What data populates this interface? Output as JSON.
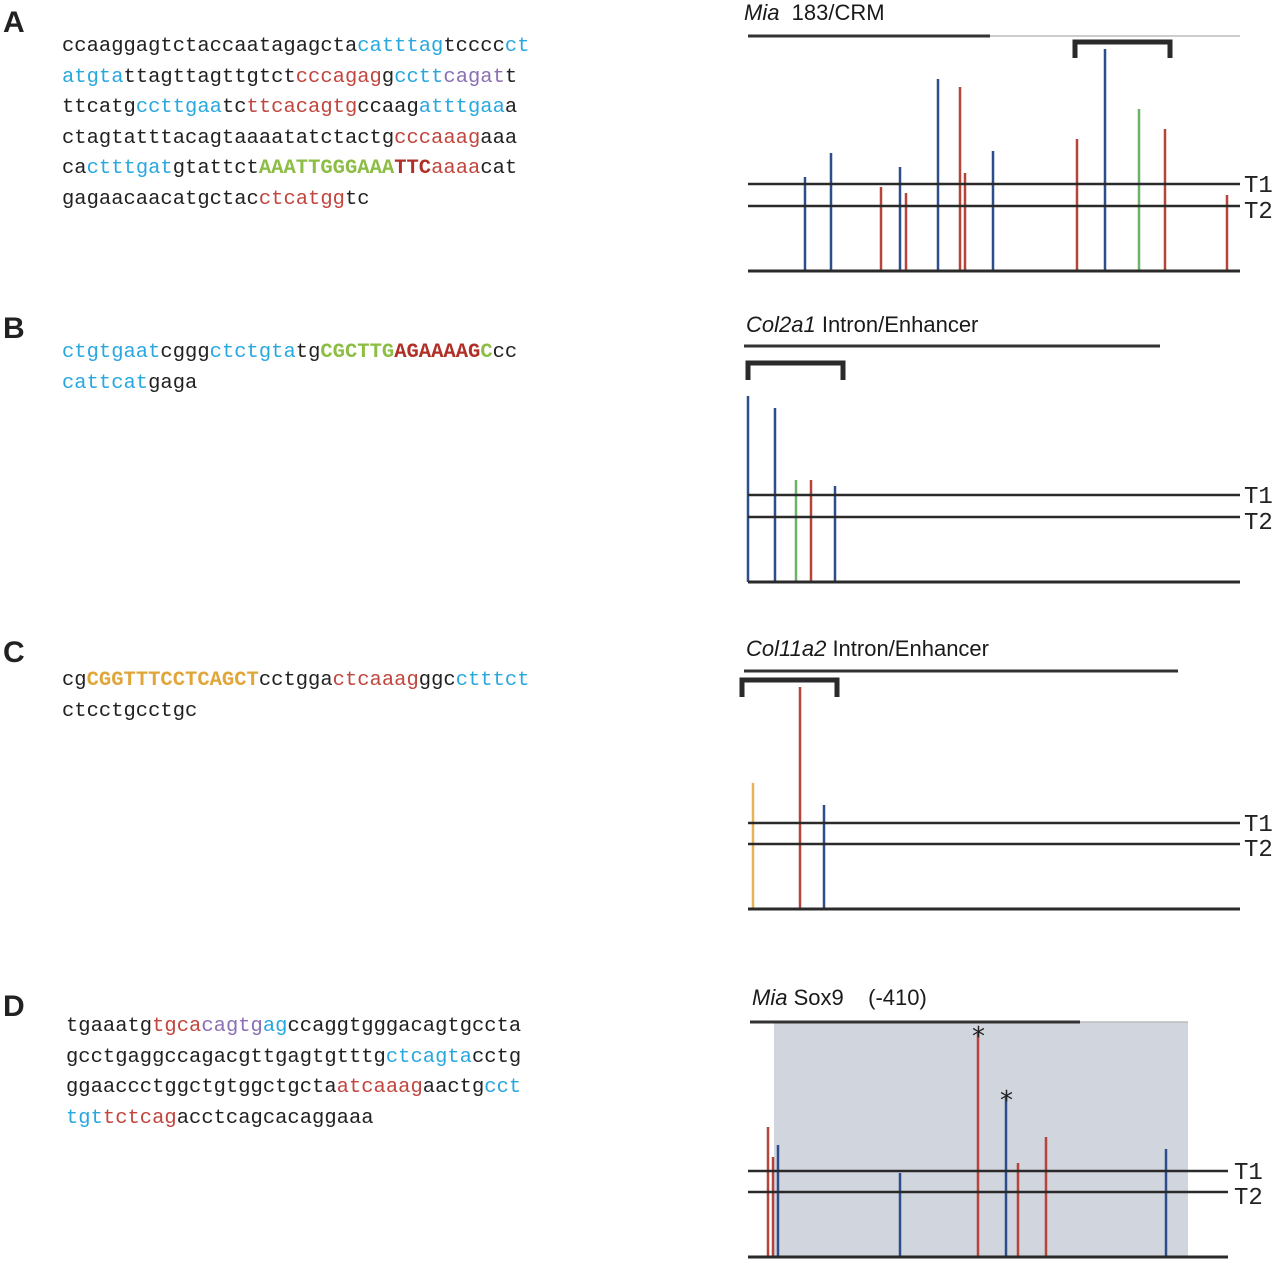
{
  "colors": {
    "cyan": "#29a8e0",
    "red": "#c0463e",
    "purple": "#8a6fb5",
    "green": "#8cbd44",
    "darkred": "#b03028",
    "orange": "#e0a63a",
    "black": "#222222",
    "bar_blue": "#2c4f8c",
    "bar_red": "#b5443a",
    "bar_green": "#6fb06a",
    "bar_orange": "#e8b25a",
    "shade": "#c9ced8"
  },
  "threshold_labels": [
    "T1",
    "T2"
  ],
  "panels": [
    {
      "letter": "A",
      "title_italic": "Mia",
      "title_rest": "  183/CRM",
      "sequence": [
        [
          [
            "ccaaggagtctaccaatagagcta",
            "black"
          ],
          [
            "catttag",
            "cyan"
          ],
          [
            "tcccc",
            "black"
          ],
          [
            "ct",
            "cyan"
          ]
        ],
        [
          [
            "atgta",
            "cyan"
          ],
          [
            "ttagttagttgtct",
            "black"
          ],
          [
            "cccagag",
            "red"
          ],
          [
            "g",
            "black"
          ],
          [
            "cctt",
            "cyan"
          ],
          [
            "cagat",
            "purple"
          ],
          [
            "t",
            "black"
          ]
        ],
        [
          [
            "ttcatg",
            "black"
          ],
          [
            "ccttgaa",
            "cyan"
          ],
          [
            "tc",
            "black"
          ],
          [
            "ttcacagtg",
            "red"
          ],
          [
            "ccaag",
            "black"
          ],
          [
            "atttgaa",
            "cyan"
          ],
          [
            "a",
            "black"
          ]
        ],
        [
          [
            "ctagtatttacagtaaaatatctactg",
            "black"
          ],
          [
            "cccaaag",
            "red"
          ],
          [
            "aaa",
            "black"
          ]
        ],
        [
          [
            "ca",
            "black"
          ],
          [
            "ctttgat",
            "cyan"
          ],
          [
            "gtattct",
            "black"
          ],
          [
            "AAATTGGGAAA",
            "green",
            "b"
          ],
          [
            "TTC",
            "darkred",
            "b"
          ],
          [
            "aaaa",
            "red"
          ],
          [
            "cat",
            "black"
          ]
        ],
        [
          [
            "gagaacaacatgctac",
            "black"
          ],
          [
            "ctcatgg",
            "red"
          ],
          [
            "tc",
            "black"
          ]
        ]
      ]
    },
    {
      "letter": "B",
      "title_italic": "Col2a1",
      "title_rest": " Intron/Enhancer",
      "sequence": [
        [
          [
            "ctgtgaat",
            "cyan"
          ],
          [
            "cggg",
            "black"
          ],
          [
            "ctctgta",
            "cyan"
          ],
          [
            "tg",
            "black"
          ],
          [
            "CGCTTG",
            "green",
            "b"
          ],
          [
            "AGAAAAG",
            "darkred",
            "b"
          ],
          [
            "C",
            "green",
            "b"
          ],
          [
            "cc",
            "black"
          ]
        ],
        [
          [
            "cattcat",
            "cyan"
          ],
          [
            "gaga",
            "black"
          ]
        ]
      ]
    },
    {
      "letter": "C",
      "title_italic": "Col11a2",
      "title_rest": " Intron/Enhancer",
      "sequence": [
        [
          [
            "cg",
            "black"
          ],
          [
            "CGGTTTCCTCAGCT",
            "orange",
            "b"
          ],
          [
            "cctgga",
            "black"
          ],
          [
            "ctcaaag",
            "red"
          ],
          [
            "ggc",
            "black"
          ],
          [
            "ctttct",
            "cyan"
          ]
        ],
        [
          [
            "ctcctgcctgc",
            "black"
          ]
        ]
      ]
    },
    {
      "letter": "D",
      "title_italic": "Mia",
      "title_rest": " Sox9    (-410)",
      "sequence": [
        [
          [
            "tgaaatg",
            "black"
          ],
          [
            "tgca",
            "red"
          ],
          [
            "cagtg",
            "purple"
          ],
          [
            "ag",
            "cyan"
          ],
          [
            "ccaggtgggacagtgccta",
            "black"
          ]
        ],
        [
          [
            "gcctgaggccagacgttgagtgtttg",
            "black"
          ],
          [
            "ctcagta",
            "cyan"
          ],
          [
            "cctg",
            "black"
          ]
        ],
        [
          [
            "ggaaccctggctgtggctgcta",
            "black"
          ],
          [
            "atcaaag",
            "red"
          ],
          [
            "aactg",
            "black"
          ],
          [
            "cct",
            "cyan"
          ]
        ],
        [
          [
            "tgt",
            "cyan"
          ],
          [
            "tctcag",
            "red"
          ],
          [
            "acctcagcacaggaaa",
            "black"
          ]
        ]
      ]
    }
  ],
  "tracks": [
    {
      "bracket": [
        1075,
        1170
      ],
      "bars": [
        {
          "x": 805,
          "h": 94,
          "c": "bar_blue"
        },
        {
          "x": 831,
          "h": 118,
          "c": "bar_blue"
        },
        {
          "x": 881,
          "h": 84,
          "c": "bar_red"
        },
        {
          "x": 900,
          "h": 104,
          "c": "bar_blue"
        },
        {
          "x": 906,
          "h": 78,
          "c": "bar_red"
        },
        {
          "x": 938,
          "h": 192,
          "c": "bar_blue"
        },
        {
          "x": 960,
          "h": 184,
          "c": "bar_red"
        },
        {
          "x": 965,
          "h": 98,
          "c": "bar_red"
        },
        {
          "x": 993,
          "h": 120,
          "c": "bar_blue"
        },
        {
          "x": 1077,
          "h": 132,
          "c": "bar_red"
        },
        {
          "x": 1105,
          "h": 222,
          "c": "bar_blue"
        },
        {
          "x": 1139,
          "h": 162,
          "c": "bar_green"
        },
        {
          "x": 1165,
          "h": 142,
          "c": "bar_red"
        },
        {
          "x": 1227,
          "h": 76,
          "c": "bar_red"
        }
      ]
    },
    {
      "bracket": [
        748,
        843
      ],
      "bars": [
        {
          "x": 748,
          "h": 186,
          "c": "bar_blue"
        },
        {
          "x": 775,
          "h": 174,
          "c": "bar_blue"
        },
        {
          "x": 796,
          "h": 102,
          "c": "bar_green"
        },
        {
          "x": 811,
          "h": 102,
          "c": "bar_red"
        },
        {
          "x": 835,
          "h": 96,
          "c": "bar_blue"
        }
      ]
    },
    {
      "bracket": [
        742,
        837
      ],
      "bars": [
        {
          "x": 753,
          "h": 126,
          "c": "bar_orange"
        },
        {
          "x": 800,
          "h": 222,
          "c": "bar_red"
        },
        {
          "x": 824,
          "h": 104,
          "c": "bar_blue"
        }
      ]
    },
    {
      "bracket": null,
      "bars": [
        {
          "x": 768,
          "h": 130,
          "c": "bar_red"
        },
        {
          "x": 773,
          "h": 100,
          "c": "bar_red"
        },
        {
          "x": 778,
          "h": 112,
          "c": "bar_blue"
        },
        {
          "x": 900,
          "h": 84,
          "c": "bar_blue"
        },
        {
          "x": 978,
          "h": 224,
          "c": "bar_red",
          "star": "*"
        },
        {
          "x": 1006,
          "h": 160,
          "c": "bar_blue",
          "star": "*"
        },
        {
          "x": 1018,
          "h": 94,
          "c": "bar_red"
        },
        {
          "x": 1046,
          "h": 120,
          "c": "bar_red"
        },
        {
          "x": 1166,
          "h": 108,
          "c": "bar_blue"
        }
      ]
    }
  ]
}
